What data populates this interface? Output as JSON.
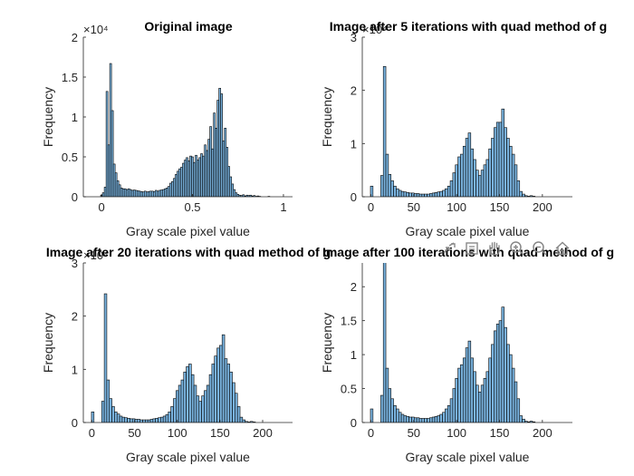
{
  "chart_data": [
    {
      "type": "bar",
      "title": "Original image",
      "xlabel": "Gray scale pixel value",
      "ylabel": "Frequency",
      "xlim": [
        -0.1,
        1.05
      ],
      "ylim": [
        0,
        20000
      ],
      "xticks": [
        0,
        0.5,
        1
      ],
      "xtick_labels": [
        "0",
        "0.5",
        "1"
      ],
      "yticks": [
        0,
        5000,
        10000,
        15000,
        20000
      ],
      "ytick_labels": [
        "0",
        "0.5",
        "1",
        "1.5",
        "2"
      ],
      "yexponent": "×10⁴",
      "bin_width": 0.01,
      "x": [
        0.0,
        0.01,
        0.02,
        0.03,
        0.04,
        0.05,
        0.06,
        0.07,
        0.08,
        0.09,
        0.1,
        0.11,
        0.12,
        0.13,
        0.14,
        0.15,
        0.16,
        0.17,
        0.18,
        0.19,
        0.2,
        0.21,
        0.22,
        0.23,
        0.24,
        0.25,
        0.26,
        0.27,
        0.28,
        0.29,
        0.3,
        0.31,
        0.32,
        0.33,
        0.34,
        0.35,
        0.36,
        0.37,
        0.38,
        0.39,
        0.4,
        0.41,
        0.42,
        0.43,
        0.44,
        0.45,
        0.46,
        0.47,
        0.48,
        0.49,
        0.5,
        0.51,
        0.52,
        0.53,
        0.54,
        0.55,
        0.56,
        0.57,
        0.58,
        0.59,
        0.6,
        0.61,
        0.62,
        0.63,
        0.64,
        0.65,
        0.66,
        0.67,
        0.68,
        0.69,
        0.7,
        0.71,
        0.72,
        0.73,
        0.74,
        0.75,
        0.76,
        0.77,
        0.78,
        0.79,
        0.8,
        0.81,
        0.82,
        0.83,
        0.84,
        0.85,
        0.86,
        0.87,
        0.88,
        0.89,
        0.9,
        0.91,
        0.92,
        0.93,
        0.94,
        0.95,
        0.96,
        0.97,
        0.98,
        0.99
      ],
      "values": [
        200,
        500,
        1200,
        13200,
        6500,
        16700,
        10800,
        4100,
        3000,
        2000,
        1500,
        1100,
        1000,
        1000,
        900,
        1000,
        900,
        800,
        850,
        800,
        750,
        700,
        650,
        600,
        700,
        600,
        650,
        700,
        700,
        650,
        800,
        700,
        800,
        850,
        900,
        1000,
        1100,
        1300,
        1700,
        1900,
        2300,
        2800,
        3200,
        3500,
        3700,
        4200,
        4600,
        4900,
        4500,
        5100,
        5000,
        4300,
        5200,
        4600,
        4900,
        5400,
        5100,
        6500,
        5800,
        7200,
        8800,
        6000,
        10500,
        8600,
        12100,
        13600,
        12900,
        7000,
        8600,
        6200,
        3800,
        2500,
        1600,
        900,
        500,
        300,
        200,
        150,
        250,
        100,
        200,
        150,
        200,
        100,
        150,
        50,
        100,
        50,
        0,
        0,
        0,
        0,
        50,
        0,
        0,
        0,
        0,
        0,
        0,
        0
      ]
    },
    {
      "type": "bar",
      "title": "Image after 5 iterations with quad method of g",
      "xlabel": "Gray scale pixel value",
      "ylabel": "Frequency",
      "xlim": [
        -10,
        235
      ],
      "ylim": [
        0,
        30000
      ],
      "xticks": [
        0,
        50,
        100,
        150,
        200
      ],
      "xtick_labels": [
        "0",
        "50",
        "100",
        "150",
        "200"
      ],
      "yticks": [
        0,
        10000,
        20000,
        30000
      ],
      "ytick_labels": [
        "0",
        "1",
        "2",
        "3"
      ],
      "yexponent": "×10⁴",
      "bin_width": 3,
      "x": [
        1,
        4,
        7,
        10,
        13,
        16,
        19,
        22,
        25,
        28,
        31,
        34,
        37,
        40,
        43,
        46,
        49,
        52,
        55,
        58,
        61,
        64,
        67,
        70,
        73,
        76,
        79,
        82,
        85,
        88,
        91,
        94,
        97,
        100,
        103,
        106,
        109,
        112,
        115,
        118,
        121,
        124,
        127,
        130,
        133,
        136,
        139,
        142,
        145,
        148,
        151,
        154,
        157,
        160,
        163,
        166,
        169,
        172,
        175,
        178,
        181,
        184,
        187,
        190,
        193,
        196,
        199,
        202,
        205,
        208,
        211,
        214,
        217,
        220
      ],
      "values": [
        2000,
        0,
        0,
        0,
        4000,
        24500,
        8000,
        4200,
        3000,
        2000,
        1500,
        1200,
        1000,
        900,
        800,
        700,
        700,
        600,
        600,
        500,
        500,
        500,
        500,
        600,
        700,
        800,
        900,
        1000,
        1200,
        1500,
        2000,
        3000,
        4500,
        6000,
        7500,
        8000,
        9500,
        11000,
        12000,
        9000,
        7000,
        5000,
        4000,
        5000,
        6000,
        7000,
        9000,
        11000,
        13000,
        14000,
        14000,
        16500,
        13000,
        11000,
        9500,
        8000,
        6000,
        3000,
        1000,
        500,
        200,
        100,
        200,
        100,
        0,
        0,
        0,
        0,
        0,
        0,
        0,
        0,
        0,
        0
      ]
    },
    {
      "type": "bar",
      "title": "Image after 20 iterations with quad method of g",
      "xlabel": "Gray scale pixel value",
      "ylabel": "Frequency",
      "xlim": [
        -10,
        235
      ],
      "ylim": [
        0,
        30000
      ],
      "xticks": [
        0,
        50,
        100,
        150,
        200
      ],
      "xtick_labels": [
        "0",
        "50",
        "100",
        "150",
        "200"
      ],
      "yticks": [
        0,
        10000,
        20000,
        30000
      ],
      "ytick_labels": [
        "0",
        "1",
        "2",
        "3"
      ],
      "yexponent": "×10⁴",
      "bin_width": 3,
      "x": [
        1,
        4,
        7,
        10,
        13,
        16,
        19,
        22,
        25,
        28,
        31,
        34,
        37,
        40,
        43,
        46,
        49,
        52,
        55,
        58,
        61,
        64,
        67,
        70,
        73,
        76,
        79,
        82,
        85,
        88,
        91,
        94,
        97,
        100,
        103,
        106,
        109,
        112,
        115,
        118,
        121,
        124,
        127,
        130,
        133,
        136,
        139,
        142,
        145,
        148,
        151,
        154,
        157,
        160,
        163,
        166,
        169,
        172,
        175,
        178,
        181,
        184,
        187,
        190,
        193,
        196,
        199,
        202,
        205,
        208,
        211,
        214,
        217,
        220
      ],
      "values": [
        2000,
        0,
        0,
        0,
        4000,
        24200,
        8000,
        4500,
        3000,
        2000,
        1600,
        1200,
        1000,
        900,
        800,
        700,
        700,
        600,
        600,
        500,
        500,
        500,
        500,
        600,
        700,
        800,
        900,
        1000,
        1200,
        1500,
        2000,
        3000,
        4500,
        6000,
        7000,
        8000,
        9500,
        10500,
        11000,
        9000,
        7000,
        5000,
        4000,
        5000,
        6000,
        7000,
        9000,
        11000,
        12500,
        14000,
        14500,
        16500,
        12000,
        11000,
        9500,
        7500,
        5500,
        3000,
        1000,
        500,
        200,
        100,
        200,
        100,
        0,
        0,
        0,
        0,
        0,
        0,
        0,
        0,
        0,
        0
      ]
    },
    {
      "type": "bar",
      "title": "Image after 100 iterations with quad method of g",
      "xlabel": "Gray scale pixel value",
      "ylabel": "Frequency",
      "xlim": [
        -10,
        235
      ],
      "ylim": [
        0,
        23500
      ],
      "xticks": [
        0,
        50,
        100,
        150,
        200
      ],
      "xtick_labels": [
        "0",
        "50",
        "100",
        "150",
        "200"
      ],
      "yticks": [
        0,
        5000,
        10000,
        15000,
        20000
      ],
      "ytick_labels": [
        "0",
        "0.5",
        "1",
        "1.5",
        "2"
      ],
      "bin_width": 3,
      "x": [
        1,
        4,
        7,
        10,
        13,
        16,
        19,
        22,
        25,
        28,
        31,
        34,
        37,
        40,
        43,
        46,
        49,
        52,
        55,
        58,
        61,
        64,
        67,
        70,
        73,
        76,
        79,
        82,
        85,
        88,
        91,
        94,
        97,
        100,
        103,
        106,
        109,
        112,
        115,
        118,
        121,
        124,
        127,
        130,
        133,
        136,
        139,
        142,
        145,
        148,
        151,
        154,
        157,
        160,
        163,
        166,
        169,
        172,
        175,
        178,
        181,
        184,
        187,
        190,
        193,
        196,
        199,
        202,
        205,
        208,
        211,
        214,
        217,
        220
      ],
      "values": [
        2000,
        0,
        0,
        0,
        4000,
        25000,
        8000,
        5000,
        3500,
        2500,
        2000,
        1500,
        1200,
        1000,
        900,
        800,
        800,
        700,
        700,
        600,
        600,
        600,
        600,
        700,
        800,
        900,
        1000,
        1200,
        1500,
        2000,
        2500,
        3500,
        5000,
        6500,
        8000,
        8500,
        9500,
        11000,
        12000,
        9500,
        7500,
        5500,
        4500,
        5500,
        6500,
        7500,
        9500,
        11500,
        13500,
        14500,
        15000,
        17000,
        14000,
        11500,
        10000,
        8000,
        6000,
        3500,
        1000,
        500,
        200,
        100,
        200,
        100,
        0,
        0,
        0,
        0,
        0,
        0,
        0,
        0,
        0,
        0
      ]
    }
  ],
  "colors": {
    "bar_fill": "#7ab4e0",
    "bar_edge": "#000000",
    "axis": "#262626"
  },
  "toolbar": {
    "icons": [
      "export-icon",
      "data-tips-icon",
      "pan-hand-icon",
      "zoom-in-icon",
      "zoom-out-icon",
      "home-icon"
    ]
  }
}
